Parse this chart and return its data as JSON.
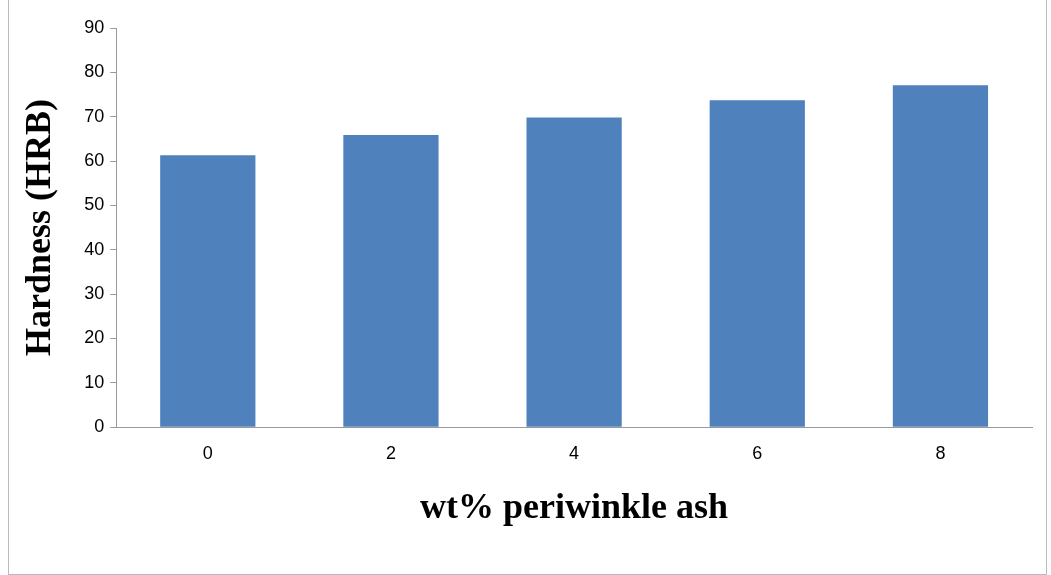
{
  "chart_data": {
    "type": "bar",
    "xlabel": "wt% periwinkle ash",
    "ylabel": "Hardness (HRB)",
    "categories": [
      "0",
      "2",
      "4",
      "6",
      "8"
    ],
    "values": [
      61.3,
      65.9,
      69.8,
      73.7,
      77.1
    ],
    "color": "#4f81bd",
    "ylim": [
      0,
      90
    ],
    "yticks": [
      0,
      10,
      20,
      30,
      40,
      50,
      60,
      70,
      80,
      90
    ],
    "grid": false,
    "legend": false
  }
}
